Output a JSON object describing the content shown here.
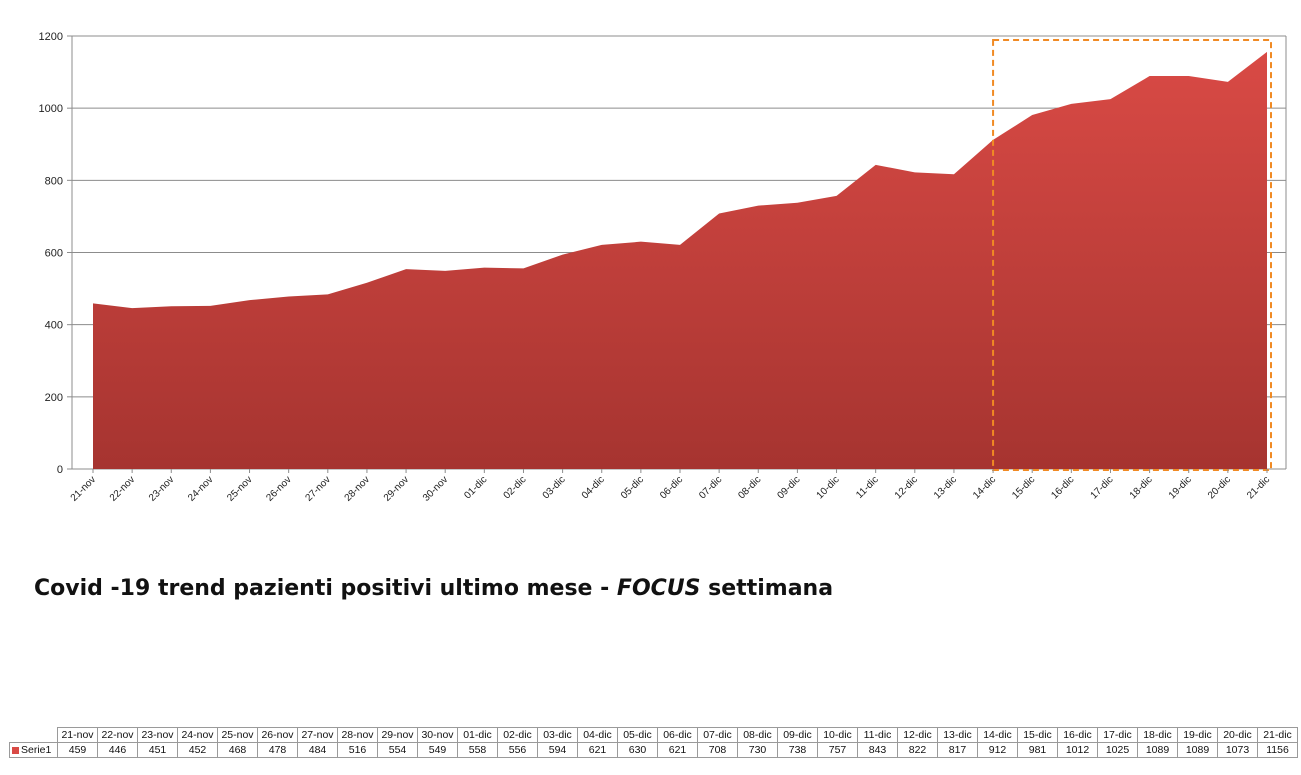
{
  "caption": {
    "prefix": "Covid -19 trend pazienti positivi ultimo mese - ",
    "emphasis": "FOCUS",
    "suffix": " settimana"
  },
  "colors": {
    "area_top": "#d94a45",
    "area_bottom": "#a63430",
    "highlight": "#f08a24",
    "grid": "#8c8c8c"
  },
  "chart_data": {
    "type": "area",
    "categories": [
      "21-nov",
      "22-nov",
      "23-nov",
      "24-nov",
      "25-nov",
      "26-nov",
      "27-nov",
      "28-nov",
      "29-nov",
      "30-nov",
      "01-dic",
      "02-dic",
      "03-dic",
      "04-dic",
      "05-dic",
      "06-dic",
      "07-dic",
      "08-dic",
      "09-dic",
      "10-dic",
      "11-dic",
      "12-dic",
      "13-dic",
      "14-dic",
      "15-dic",
      "16-dic",
      "17-dic",
      "18-dic",
      "19-dic",
      "20-dic",
      "21-dic"
    ],
    "series": [
      {
        "name": "Serie1",
        "values": [
          459,
          446,
          451,
          452,
          468,
          478,
          484,
          516,
          554,
          549,
          558,
          556,
          594,
          621,
          630,
          621,
          708,
          730,
          738,
          757,
          843,
          822,
          817,
          912,
          981,
          1012,
          1025,
          1089,
          1089,
          1073,
          1156
        ]
      }
    ],
    "ylim": [
      0,
      1200
    ],
    "yticks": [
      0,
      200,
      400,
      600,
      800,
      1000,
      1200
    ],
    "grid": true,
    "highlight_range": [
      "14-dic",
      "21-dic"
    ]
  }
}
